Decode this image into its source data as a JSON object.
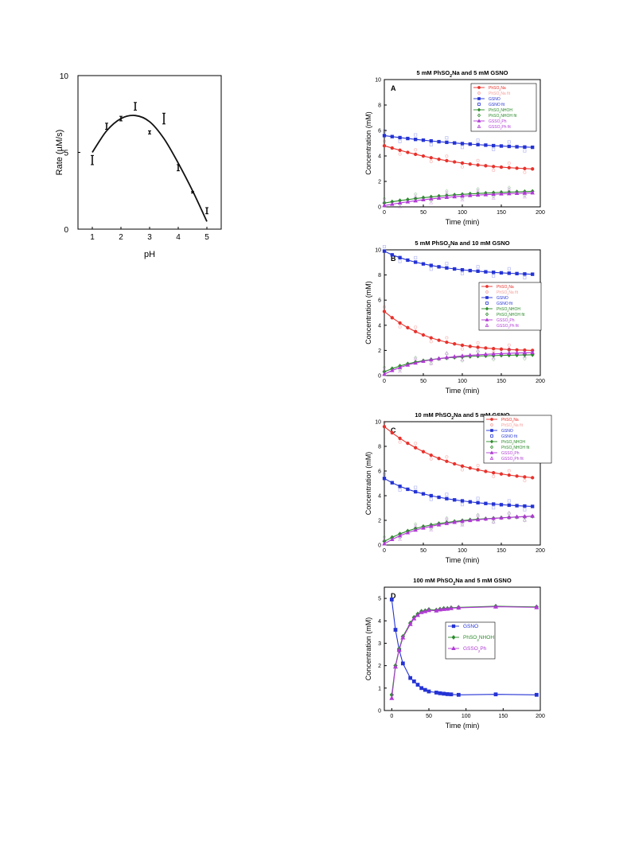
{
  "chart_data": [
    {
      "id": "rate_vs_ph",
      "type": "scatter",
      "title": "",
      "xlabel": "pH",
      "ylabel": "Rate (µM/s)",
      "xlim": [
        0.5,
        5.5
      ],
      "ylim": [
        0,
        10
      ],
      "xticks": [
        1,
        2,
        3,
        4,
        5
      ],
      "yticks": [
        0,
        5,
        10
      ],
      "points": [
        {
          "x": 1.0,
          "y": 4.5,
          "err": 0.3
        },
        {
          "x": 1.5,
          "y": 6.7,
          "err": 0.2
        },
        {
          "x": 2.0,
          "y": 7.2,
          "err": 0.15
        },
        {
          "x": 2.5,
          "y": 8.0,
          "err": 0.25
        },
        {
          "x": 3.0,
          "y": 6.3,
          "err": 0.1
        },
        {
          "x": 3.5,
          "y": 7.2,
          "err": 0.35
        },
        {
          "x": 4.0,
          "y": 4.0,
          "err": 0.2
        },
        {
          "x": 4.5,
          "y": 2.4,
          "err": 0.05
        },
        {
          "x": 5.0,
          "y": 1.2,
          "err": 0.2
        }
      ],
      "fit": {
        "x": [
          1.0,
          1.5,
          2.0,
          2.5,
          3.0,
          3.5,
          4.0,
          4.5,
          5.0
        ],
        "y": [
          5.0,
          6.4,
          7.2,
          7.4,
          7.0,
          5.9,
          4.3,
          2.5,
          0.5
        ]
      }
    },
    {
      "id": "panel_A",
      "type": "line",
      "panel": "A",
      "title": "5 mM PhSO2Na and 5 mM GSNO",
      "xlabel": "Time (min)",
      "ylabel": "Concentration (mM)",
      "xlim": [
        0,
        200
      ],
      "ylim": [
        0,
        10
      ],
      "xticks": [
        0,
        50,
        100,
        150,
        200
      ],
      "yticks": [
        0,
        2,
        4,
        6,
        8,
        10
      ],
      "x": [
        0,
        10,
        20,
        30,
        40,
        50,
        60,
        70,
        80,
        90,
        100,
        110,
        120,
        130,
        140,
        150,
        160,
        170,
        180,
        190
      ],
      "series": [
        {
          "name": "PhSO2Na",
          "color": "#e8322c",
          "marker": "circle",
          "y": [
            4.8,
            4.62,
            4.45,
            4.28,
            4.13,
            3.99,
            3.86,
            3.74,
            3.63,
            3.53,
            3.44,
            3.36,
            3.29,
            3.23,
            3.17,
            3.12,
            3.08,
            3.04,
            3.01,
            2.98
          ]
        },
        {
          "name": "GSNO",
          "color": "#2433d4",
          "marker": "square",
          "y": [
            5.6,
            5.52,
            5.44,
            5.37,
            5.3,
            5.24,
            5.18,
            5.12,
            5.07,
            5.02,
            4.97,
            4.93,
            4.89,
            4.85,
            4.81,
            4.78,
            4.75,
            4.72,
            4.7,
            4.68
          ]
        },
        {
          "name": "PhSO2NHOH",
          "color": "#2a8a2a",
          "marker": "diamond",
          "y": [
            0.3,
            0.4,
            0.49,
            0.57,
            0.65,
            0.72,
            0.78,
            0.84,
            0.89,
            0.94,
            0.98,
            1.02,
            1.05,
            1.08,
            1.11,
            1.14,
            1.16,
            1.18,
            1.2,
            1.22
          ]
        },
        {
          "name": "GSSO2Ph",
          "color": "#b03ad4",
          "marker": "triangle",
          "y": [
            0.1,
            0.21,
            0.31,
            0.4,
            0.48,
            0.56,
            0.63,
            0.69,
            0.75,
            0.8,
            0.85,
            0.89,
            0.93,
            0.96,
            0.99,
            1.02,
            1.04,
            1.06,
            1.08,
            1.1
          ]
        }
      ],
      "legend": [
        {
          "label": "PhSO2Na",
          "color": "#e8322c",
          "marker": "circle",
          "line": true
        },
        {
          "label": "PhSO2Na fit",
          "color": "#f4a09d",
          "marker": "circle-open",
          "line": false
        },
        {
          "label": "GSNO",
          "color": "#2433d4",
          "marker": "square",
          "line": true
        },
        {
          "label": "GSNO fit",
          "color": "#2433d4",
          "marker": "square-open",
          "line": false
        },
        {
          "label": "PhSO2NHOH",
          "color": "#2a8a2a",
          "marker": "diamond",
          "line": true
        },
        {
          "label": "PhSO2NHOH fit",
          "color": "#2a8a2a",
          "marker": "diamond-open",
          "line": false
        },
        {
          "label": "GSSO2Ph",
          "color": "#b03ad4",
          "marker": "triangle",
          "line": true
        },
        {
          "label": "GSSO2Ph fit",
          "color": "#b03ad4",
          "marker": "triangle-open",
          "line": false
        }
      ]
    },
    {
      "id": "panel_B",
      "type": "line",
      "panel": "B",
      "title": "5 mM PhSO2Na and 10 mM GSNO",
      "xlabel": "Time (min)",
      "ylabel": "Concentration (mM)",
      "xlim": [
        0,
        200
      ],
      "ylim": [
        0,
        10
      ],
      "xticks": [
        0,
        50,
        100,
        150,
        200
      ],
      "yticks": [
        0,
        2,
        4,
        6,
        8,
        10
      ],
      "x": [
        0,
        10,
        20,
        30,
        40,
        50,
        60,
        70,
        80,
        90,
        100,
        110,
        120,
        130,
        140,
        150,
        160,
        170,
        180,
        190
      ],
      "series": [
        {
          "name": "PhSO2Na",
          "color": "#e8322c",
          "marker": "circle",
          "y": [
            5.1,
            4.6,
            4.18,
            3.81,
            3.5,
            3.23,
            3.0,
            2.81,
            2.65,
            2.52,
            2.41,
            2.32,
            2.25,
            2.19,
            2.14,
            2.1,
            2.07,
            2.04,
            2.02,
            2.0
          ]
        },
        {
          "name": "GSNO",
          "color": "#2433d4",
          "marker": "square",
          "y": [
            9.9,
            9.6,
            9.38,
            9.18,
            9.02,
            8.88,
            8.76,
            8.65,
            8.56,
            8.48,
            8.41,
            8.35,
            8.3,
            8.25,
            8.21,
            8.17,
            8.14,
            8.11,
            8.08,
            8.06
          ]
        },
        {
          "name": "PhSO2NHOH",
          "color": "#2a8a2a",
          "marker": "diamond",
          "y": [
            0.3,
            0.55,
            0.76,
            0.93,
            1.07,
            1.18,
            1.27,
            1.34,
            1.4,
            1.45,
            1.49,
            1.52,
            1.55,
            1.57,
            1.59,
            1.61,
            1.62,
            1.63,
            1.64,
            1.65
          ]
        },
        {
          "name": "GSSO2Ph",
          "color": "#b03ad4",
          "marker": "triangle",
          "y": [
            0.1,
            0.4,
            0.64,
            0.84,
            1.0,
            1.14,
            1.25,
            1.35,
            1.43,
            1.5,
            1.56,
            1.61,
            1.65,
            1.69,
            1.72,
            1.75,
            1.77,
            1.79,
            1.81,
            1.83
          ]
        }
      ],
      "legend": [
        {
          "label": "PhSO2Na",
          "color": "#e8322c",
          "marker": "circle",
          "line": true
        },
        {
          "label": "PhSO2Na fit",
          "color": "#f4a09d",
          "marker": "circle-open",
          "line": false
        },
        {
          "label": "GSNO",
          "color": "#2433d4",
          "marker": "square",
          "line": true
        },
        {
          "label": "GSNO fit",
          "color": "#2433d4",
          "marker": "square-open",
          "line": false
        },
        {
          "label": "PhSO2NHOH",
          "color": "#2a8a2a",
          "marker": "diamond",
          "line": true
        },
        {
          "label": "PhSO2NHOH fit",
          "color": "#2a8a2a",
          "marker": "diamond-open",
          "line": false
        },
        {
          "label": "GSSO2Ph",
          "color": "#b03ad4",
          "marker": "triangle",
          "line": true
        },
        {
          "label": "GSSO2Ph fit",
          "color": "#b03ad4",
          "marker": "triangle-open",
          "line": false
        }
      ]
    },
    {
      "id": "panel_C",
      "type": "line",
      "panel": "C",
      "title": "10 mM PhSO2Na and 5 mM GSNO",
      "xlabel": "Time (min)",
      "ylabel": "Concentration (mM)",
      "xlim": [
        0,
        200
      ],
      "ylim": [
        0,
        10
      ],
      "xticks": [
        0,
        50,
        100,
        150,
        200
      ],
      "yticks": [
        0,
        2,
        4,
        6,
        8,
        10
      ],
      "x": [
        0,
        10,
        20,
        30,
        40,
        50,
        60,
        70,
        80,
        90,
        100,
        110,
        120,
        130,
        140,
        150,
        160,
        170,
        180,
        190
      ],
      "series": [
        {
          "name": "PhSO2Na",
          "color": "#e8322c",
          "marker": "circle",
          "y": [
            9.6,
            9.1,
            8.65,
            8.25,
            7.89,
            7.57,
            7.28,
            7.02,
            6.79,
            6.58,
            6.4,
            6.24,
            6.1,
            5.97,
            5.86,
            5.76,
            5.67,
            5.59,
            5.52,
            5.46
          ]
        },
        {
          "name": "GSNO",
          "color": "#2433d4",
          "marker": "square",
          "y": [
            5.4,
            5.05,
            4.76,
            4.52,
            4.32,
            4.15,
            4.0,
            3.87,
            3.76,
            3.66,
            3.58,
            3.5,
            3.43,
            3.37,
            3.32,
            3.27,
            3.23,
            3.19,
            3.16,
            3.13
          ]
        },
        {
          "name": "PhSO2NHOH",
          "color": "#2a8a2a",
          "marker": "diamond",
          "y": [
            0.3,
            0.62,
            0.9,
            1.14,
            1.34,
            1.5,
            1.63,
            1.74,
            1.83,
            1.91,
            1.98,
            2.04,
            2.09,
            2.13,
            2.17,
            2.21,
            2.24,
            2.27,
            2.3,
            2.33
          ]
        },
        {
          "name": "GSSO2Ph",
          "color": "#b03ad4",
          "marker": "triangle",
          "y": [
            0.1,
            0.45,
            0.75,
            1.0,
            1.21,
            1.38,
            1.52,
            1.64,
            1.75,
            1.84,
            1.92,
            1.99,
            2.05,
            2.11,
            2.16,
            2.2,
            2.24,
            2.28,
            2.31,
            2.34
          ]
        }
      ],
      "legend": [
        {
          "label": "PhSO2Na",
          "color": "#e8322c",
          "marker": "circle",
          "line": true
        },
        {
          "label": "PhSO2Na fit",
          "color": "#f4a09d",
          "marker": "circle-open",
          "line": false
        },
        {
          "label": "GSNO",
          "color": "#2433d4",
          "marker": "square",
          "line": true
        },
        {
          "label": "GSNO fit",
          "color": "#2433d4",
          "marker": "square-open",
          "line": false
        },
        {
          "label": "PhSO2NHOH",
          "color": "#2a8a2a",
          "marker": "diamond",
          "line": true
        },
        {
          "label": "PhSO2NHOH fit",
          "color": "#2a8a2a",
          "marker": "diamond-open",
          "line": false
        },
        {
          "label": "GSSO2Ph",
          "color": "#b03ad4",
          "marker": "triangle",
          "line": true
        },
        {
          "label": "GSSO2Ph fit",
          "color": "#b03ad4",
          "marker": "triangle-open",
          "line": false
        }
      ]
    },
    {
      "id": "panel_D",
      "type": "line",
      "panel": "D",
      "title": "100 mM PhSO2Na and 5 mM GSNO",
      "xlabel": "Time (min)",
      "ylabel": "Concentration (mM)",
      "xlim": [
        -10,
        200
      ],
      "ylim": [
        0,
        5.5
      ],
      "xticks": [
        0,
        50,
        100,
        150,
        200
      ],
      "yticks": [
        0,
        1,
        2,
        3,
        4,
        5
      ],
      "series": [
        {
          "name": "GSNO",
          "color": "#2433d4",
          "marker": "square",
          "x": [
            0,
            5,
            10,
            15,
            25,
            30,
            35,
            40,
            45,
            50,
            60,
            65,
            70,
            75,
            80,
            90,
            140,
            195
          ],
          "y": [
            4.95,
            3.6,
            2.7,
            2.1,
            1.45,
            1.3,
            1.15,
            1.0,
            0.92,
            0.85,
            0.8,
            0.77,
            0.75,
            0.73,
            0.72,
            0.7,
            0.72,
            0.7
          ]
        },
        {
          "name": "PhSO2NHOH",
          "color": "#2a8a2a",
          "marker": "diamond",
          "x": [
            0,
            5,
            10,
            15,
            25,
            30,
            35,
            40,
            45,
            50,
            60,
            65,
            70,
            75,
            80,
            90,
            140,
            195
          ],
          "y": [
            0.7,
            2.0,
            2.75,
            3.3,
            3.9,
            4.15,
            4.3,
            4.42,
            4.45,
            4.5,
            4.48,
            4.52,
            4.55,
            4.55,
            4.58,
            4.6,
            4.65,
            4.62
          ]
        },
        {
          "name": "GSSO2Ph",
          "color": "#b03ad4",
          "marker": "triangle",
          "x": [
            0,
            5,
            10,
            15,
            25,
            30,
            35,
            40,
            45,
            50,
            60,
            65,
            70,
            75,
            80,
            90,
            140,
            195
          ],
          "y": [
            0.55,
            1.95,
            2.7,
            3.25,
            3.85,
            4.1,
            4.25,
            4.38,
            4.42,
            4.47,
            4.45,
            4.5,
            4.52,
            4.53,
            4.56,
            4.58,
            4.63,
            4.6
          ]
        }
      ],
      "legend": [
        {
          "label": "GSNO",
          "color": "#2433d4",
          "marker": "square",
          "line": true
        },
        {
          "label": "PhSO2NHOH",
          "color": "#2a8a2a",
          "marker": "diamond",
          "line": true
        },
        {
          "label": "GSSO2Ph",
          "color": "#b03ad4",
          "marker": "triangle",
          "line": true
        }
      ]
    }
  ]
}
